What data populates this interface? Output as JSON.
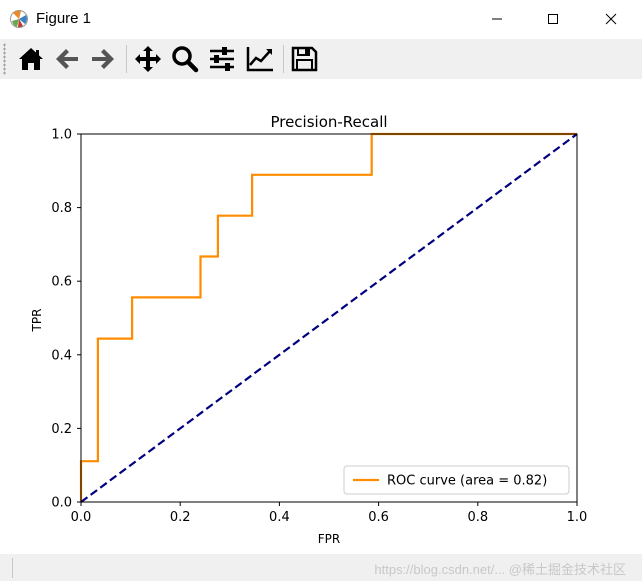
{
  "window": {
    "title": "Figure 1"
  },
  "toolbar": {
    "buttons": [
      "home-icon",
      "back-arrow-icon",
      "forward-arrow-icon",
      "pan-icon",
      "zoom-icon",
      "subplots-icon",
      "edit-axis-icon",
      "save-icon"
    ]
  },
  "status": {
    "watermark": "https://blog.csdn.net/... @稀土掘金技术社区"
  },
  "chart_data": {
    "type": "line",
    "title": "Precision-Recall",
    "xlabel": "FPR",
    "ylabel": "TPR",
    "xlim": [
      0.0,
      1.0
    ],
    "ylim": [
      0.0,
      1.0
    ],
    "xticks": [
      "0.0",
      "0.2",
      "0.4",
      "0.6",
      "0.8",
      "1.0"
    ],
    "yticks": [
      "0.0",
      "0.2",
      "0.4",
      "0.6",
      "0.8",
      "1.0"
    ],
    "legend_position": "lower-right",
    "series": [
      {
        "name": "ROC curve (area = 0.82)",
        "color": "#ff8c00",
        "style": "solid",
        "x": [
          0.0,
          0.0,
          0.034,
          0.034,
          0.103,
          0.103,
          0.241,
          0.241,
          0.276,
          0.276,
          0.345,
          0.345,
          0.586,
          0.586,
          1.0
        ],
        "y": [
          0.0,
          0.111,
          0.111,
          0.444,
          0.444,
          0.556,
          0.556,
          0.667,
          0.667,
          0.778,
          0.778,
          0.889,
          0.889,
          1.0,
          1.0
        ]
      },
      {
        "name": "",
        "color": "#000080",
        "style": "dashed",
        "x": [
          0.0,
          1.0
        ],
        "y": [
          0.0,
          1.0
        ]
      }
    ]
  }
}
